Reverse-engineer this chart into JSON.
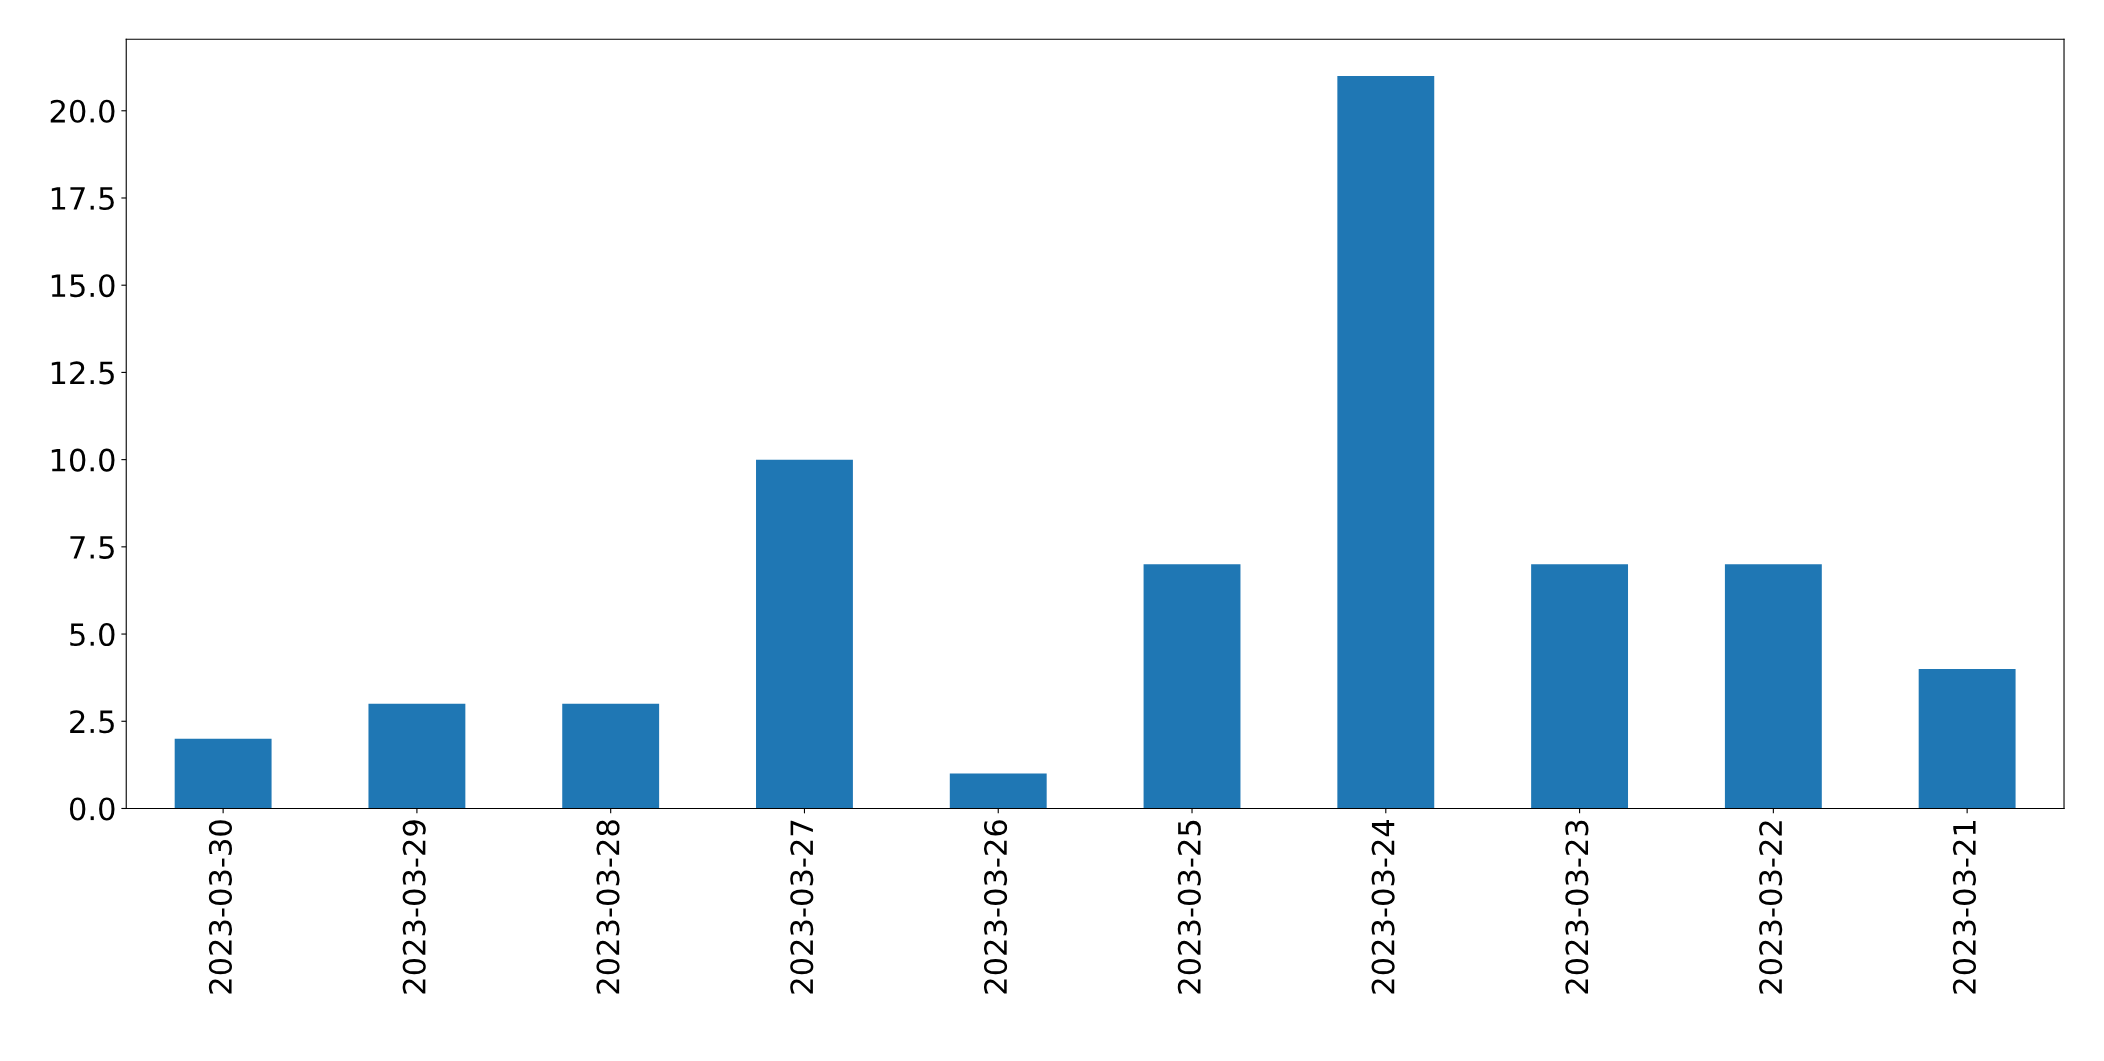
{
  "chart_data": {
    "type": "bar",
    "categories": [
      "2023-03-30",
      "2023-03-29",
      "2023-03-28",
      "2023-03-27",
      "2023-03-26",
      "2023-03-25",
      "2023-03-24",
      "2023-03-23",
      "2023-03-22",
      "2023-03-21"
    ],
    "values": [
      2,
      3,
      3,
      10,
      1,
      7,
      21,
      7,
      7,
      4
    ],
    "color": "#1f77b4",
    "ylim": [
      0,
      22.05
    ],
    "yticks": [
      {
        "value": 0,
        "label": "0.0"
      },
      {
        "value": 2.5,
        "label": "2.5"
      },
      {
        "value": 5,
        "label": "5.0"
      },
      {
        "value": 7.5,
        "label": "7.5"
      },
      {
        "value": 10,
        "label": "10.0"
      },
      {
        "value": 12.5,
        "label": "12.5"
      },
      {
        "value": 15,
        "label": "15.0"
      },
      {
        "value": 17.5,
        "label": "17.5"
      },
      {
        "value": 20,
        "label": "20.0"
      }
    ],
    "grid": false
  }
}
